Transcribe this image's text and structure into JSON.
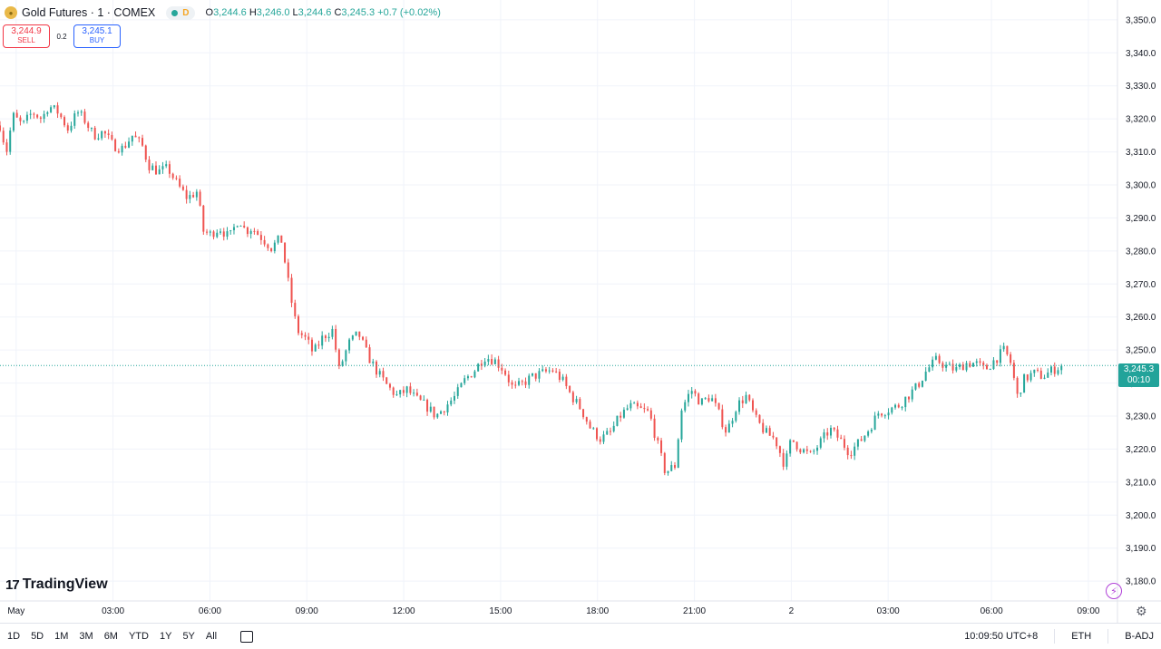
{
  "header": {
    "symbol": "Gold Futures · 1 · COMEX",
    "source_badge": "D",
    "open_label": "O",
    "open": "3,244.6",
    "high_label": "H",
    "high": "3,246.0",
    "low_label": "L",
    "low": "3,244.6",
    "close_label": "C",
    "close": "3,245.3",
    "change": "+0.7 (+0.02%)"
  },
  "trade": {
    "sell_price": "3,244.9",
    "sell_label": "SELL",
    "spread": "0.2",
    "buy_price": "3,245.1",
    "buy_label": "BUY"
  },
  "logo_text": "TradingView",
  "last_price": {
    "price": "3,245.3",
    "countdown": "00:10"
  },
  "ranges": [
    "1D",
    "5D",
    "1M",
    "3M",
    "6M",
    "YTD",
    "1Y",
    "5Y",
    "All"
  ],
  "footer": {
    "time": "10:09:50 UTC+8",
    "session": "ETH",
    "adjust": "B-ADJ"
  },
  "colors": {
    "up": "#26a69a",
    "down": "#ef5350",
    "last_line": "#26a69a"
  },
  "chart_data": {
    "type": "candlestick",
    "symbol": "Gold Futures",
    "interval": "1",
    "ylim": [
      3174,
      3356
    ],
    "yticks": [
      3180,
      3190,
      3200,
      3210,
      3220,
      3230,
      3240,
      3250,
      3260,
      3270,
      3280,
      3290,
      3300,
      3310,
      3320,
      3330,
      3340,
      3350
    ],
    "ytick_labels": [
      "3,180.0",
      "3,190.0",
      "3,200.0",
      "3,210.0",
      "3,220.0",
      "3,230.0",
      "3,240.0",
      "3,250.0",
      "3,260.0",
      "3,270.0",
      "3,280.0",
      "3,290.0",
      "3,300.0",
      "3,310.0",
      "3,320.0",
      "3,330.0",
      "3,340.0",
      "3,350.0"
    ],
    "xticks": [
      "May",
      "03:00",
      "06:00",
      "09:00",
      "12:00",
      "15:00",
      "18:00",
      "21:00",
      "2",
      "03:00",
      "06:00",
      "09:00"
    ],
    "xtick_hours": [
      0,
      3,
      6,
      9,
      12,
      15,
      18,
      21,
      24,
      27,
      30.2,
      33.2
    ],
    "xlim_hours": [
      -0.5,
      34.1
    ],
    "last_price": 3245.3,
    "series_close": [
      [
        -0.5,
        3318
      ],
      [
        -0.3,
        3310
      ],
      [
        -0.1,
        3321
      ],
      [
        0.2,
        3318
      ],
      [
        0.5,
        3322
      ],
      [
        0.8,
        3320
      ],
      [
        1.0,
        3324
      ],
      [
        1.3,
        3322
      ],
      [
        1.6,
        3317
      ],
      [
        1.9,
        3322
      ],
      [
        2.1,
        3320
      ],
      [
        2.4,
        3315
      ],
      [
        2.7,
        3316
      ],
      [
        3.0,
        3312
      ],
      [
        3.3,
        3311
      ],
      [
        3.6,
        3315
      ],
      [
        3.9,
        3312
      ],
      [
        4.1,
        3306
      ],
      [
        4.4,
        3304
      ],
      [
        4.7,
        3305
      ],
      [
        5.0,
        3300
      ],
      [
        5.3,
        3296
      ],
      [
        5.6,
        3298
      ],
      [
        5.8,
        3286
      ],
      [
        6.0,
        3285
      ],
      [
        6.3,
        3287
      ],
      [
        6.6,
        3284
      ],
      [
        6.9,
        3290
      ],
      [
        7.1,
        3286
      ],
      [
        7.3,
        3287
      ],
      [
        7.6,
        3284
      ],
      [
        7.9,
        3281
      ],
      [
        8.2,
        3284
      ],
      [
        8.5,
        3266
      ],
      [
        8.7,
        3256
      ],
      [
        9.0,
        3253
      ],
      [
        9.2,
        3249
      ],
      [
        9.5,
        3254
      ],
      [
        9.8,
        3256
      ],
      [
        10.0,
        3244
      ],
      [
        10.3,
        3252
      ],
      [
        10.6,
        3255
      ],
      [
        10.9,
        3248
      ],
      [
        11.2,
        3243
      ],
      [
        11.5,
        3239
      ],
      [
        11.8,
        3236
      ],
      [
        12.1,
        3238
      ],
      [
        12.4,
        3235
      ],
      [
        12.7,
        3233
      ],
      [
        13.0,
        3230
      ],
      [
        13.3,
        3233
      ],
      [
        13.6,
        3236
      ],
      [
        13.9,
        3241
      ],
      [
        14.2,
        3244
      ],
      [
        14.5,
        3248
      ],
      [
        14.8,
        3247
      ],
      [
        15.1,
        3244
      ],
      [
        15.4,
        3238
      ],
      [
        15.7,
        3240
      ],
      [
        16.0,
        3242
      ],
      [
        16.3,
        3243
      ],
      [
        16.6,
        3244
      ],
      [
        16.9,
        3241
      ],
      [
        17.2,
        3236
      ],
      [
        17.5,
        3232
      ],
      [
        17.8,
        3226
      ],
      [
        18.1,
        3223
      ],
      [
        18.4,
        3225
      ],
      [
        18.7,
        3230
      ],
      [
        19.0,
        3233
      ],
      [
        19.3,
        3232
      ],
      [
        19.6,
        3231
      ],
      [
        19.9,
        3220
      ],
      [
        20.1,
        3213
      ],
      [
        20.4,
        3215
      ],
      [
        20.6,
        3232
      ],
      [
        20.9,
        3238
      ],
      [
        21.2,
        3234
      ],
      [
        21.5,
        3236
      ],
      [
        21.7,
        3232
      ],
      [
        22.0,
        3225
      ],
      [
        22.3,
        3233
      ],
      [
        22.6,
        3236
      ],
      [
        22.9,
        3229
      ],
      [
        23.2,
        3225
      ],
      [
        23.5,
        3223
      ],
      [
        23.8,
        3215
      ],
      [
        24.0,
        3223
      ],
      [
        24.3,
        3220
      ],
      [
        24.6,
        3218
      ],
      [
        24.9,
        3222
      ],
      [
        25.2,
        3226
      ],
      [
        25.5,
        3223
      ],
      [
        25.8,
        3219
      ],
      [
        26.1,
        3222
      ],
      [
        26.4,
        3226
      ],
      [
        26.7,
        3231
      ],
      [
        27.0,
        3232
      ],
      [
        27.3,
        3233
      ],
      [
        27.6,
        3236
      ],
      [
        27.9,
        3239
      ],
      [
        28.2,
        3244
      ],
      [
        28.5,
        3247
      ],
      [
        28.8,
        3245
      ],
      [
        29.1,
        3244
      ],
      [
        29.4,
        3246
      ],
      [
        29.7,
        3246
      ],
      [
        30.0,
        3244
      ],
      [
        30.3,
        3247
      ],
      [
        30.6,
        3250
      ],
      [
        30.8,
        3246
      ],
      [
        31.0,
        3236
      ],
      [
        31.2,
        3241
      ],
      [
        31.5,
        3243
      ],
      [
        31.8,
        3242
      ],
      [
        32.1,
        3244
      ],
      [
        32.4,
        3245.3
      ]
    ]
  }
}
